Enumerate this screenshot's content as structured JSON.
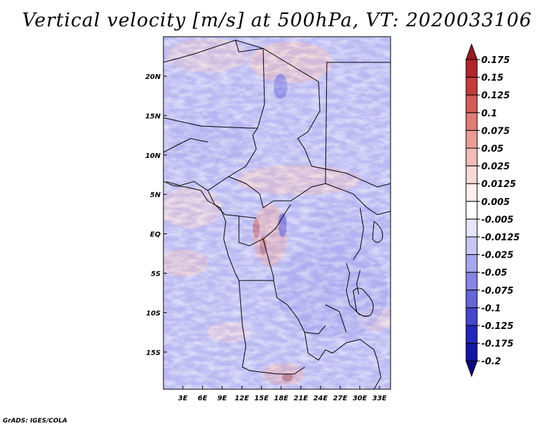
{
  "title": "Vertical velocity [m/s] at 500hPa, VT: 2020033106",
  "footer": "GrADS: IGES/COLA",
  "map": {
    "lon_labels": [
      "3E",
      "6E",
      "9E",
      "12E",
      "15E",
      "18E",
      "21E",
      "24E",
      "27E",
      "30E",
      "33E"
    ],
    "lat_labels": [
      "20N",
      "15N",
      "10N",
      "5N",
      "EQ",
      "5S",
      "10S",
      "15S"
    ]
  },
  "colorbar": {
    "labels": [
      "0.175",
      "0.15",
      "0.125",
      "0.1",
      "0.075",
      "0.05",
      "0.025",
      "0.0125",
      "0.005",
      "-0.005",
      "-0.0125",
      "-0.025",
      "-0.05",
      "-0.075",
      "-0.1",
      "-0.125",
      "-0.175",
      "-0.2"
    ],
    "colors": [
      "#9b1a1d",
      "#b3232a",
      "#c83a3a",
      "#d85a56",
      "#e27b74",
      "#eb9c95",
      "#f3bcb6",
      "#f8d9d6",
      "#fdf0ee",
      "#ffffff",
      "#e6e6fb",
      "#c7c7f4",
      "#a7a7ee",
      "#8585e6",
      "#6565dc",
      "#4444cf",
      "#2424bf",
      "#1414a8",
      "#0a0a80"
    ]
  }
}
